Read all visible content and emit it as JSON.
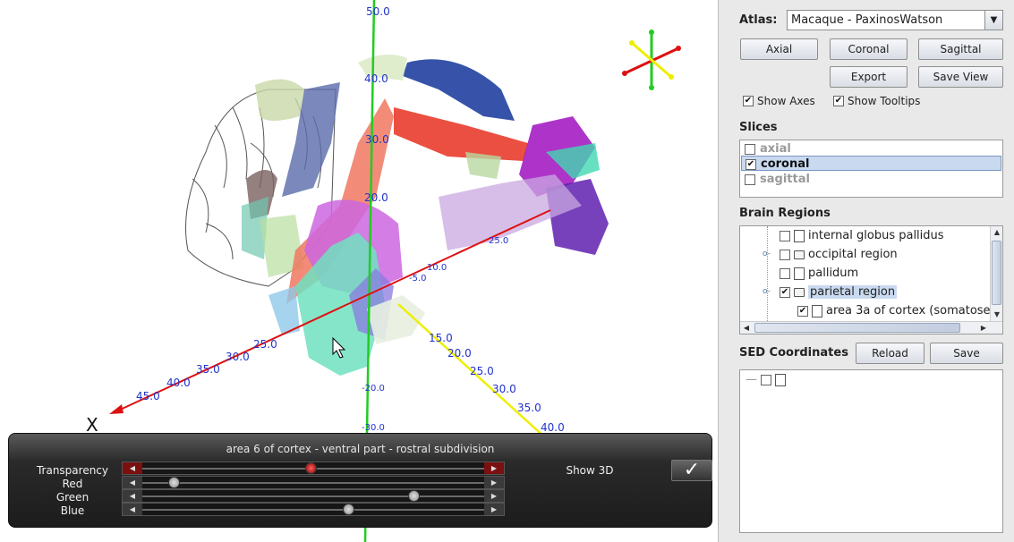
{
  "viewport": {
    "y_axis_ticks": [
      "50.0",
      "40.0",
      "30.0",
      "20.0",
      "-20.0",
      "-30.0"
    ],
    "x_axis_ticks": [
      "25.0",
      "30.0",
      "35.0",
      "40.0",
      "45.0"
    ],
    "z_axis_ticks": [
      "15.0",
      "20.0",
      "25.0",
      "30.0",
      "35.0",
      "40.0"
    ],
    "inner_ticks": [
      "25.0",
      "-5.0",
      "10.0"
    ],
    "x_axis_label": "X",
    "colors": {
      "y_axis": "#22cc22",
      "x_axis": "#dd1111",
      "z_axis": "#eeee00",
      "tick_text": "#2233cc"
    }
  },
  "panel": {
    "title": "area 6 of cortex - ventral part - rostral subdivision",
    "sliders": [
      {
        "label": "Transparency",
        "value": 0.49,
        "accent": "red"
      },
      {
        "label": "Red",
        "value": 0.09,
        "accent": "none"
      },
      {
        "label": "Green",
        "value": 0.79,
        "accent": "none"
      },
      {
        "label": "Blue",
        "value": 0.6,
        "accent": "none"
      }
    ],
    "show3d_label": "Show 3D",
    "show3d_checked": true,
    "arrow_left": "◀",
    "arrow_right": "▶",
    "check_glyph": "✓"
  },
  "sidebar": {
    "atlas_label": "Atlas:",
    "atlas_value": "Macaque - PaxinosWatson",
    "view_buttons": {
      "axial": "Axial",
      "coronal": "Coronal",
      "sagittal": "Sagittal",
      "export": "Export",
      "save_view": "Save View"
    },
    "show_axes": {
      "label": "Show Axes",
      "checked": true
    },
    "show_tooltips": {
      "label": "Show Tooltips",
      "checked": true
    },
    "slices_label": "Slices",
    "slices": [
      {
        "label": "axial",
        "checked": false,
        "selected": false
      },
      {
        "label": "coronal",
        "checked": true,
        "selected": true
      },
      {
        "label": "sagittal",
        "checked": false,
        "selected": false
      }
    ],
    "regions_label": "Brain Regions",
    "regions": [
      {
        "label": "internal globus pallidus",
        "checked": false,
        "kind": "file",
        "highlighted": false
      },
      {
        "label": "occipital region",
        "checked": false,
        "kind": "folder",
        "highlighted": false
      },
      {
        "label": "pallidum",
        "checked": false,
        "kind": "file",
        "highlighted": false
      },
      {
        "label": "parietal region",
        "checked": true,
        "kind": "folder",
        "highlighted": true
      },
      {
        "label": "area 3a of cortex (somatose",
        "checked": true,
        "kind": "file",
        "highlighted": false
      }
    ],
    "sed_label": "SED Coordinates",
    "reload_label": "Reload",
    "save_label": "Save",
    "check_glyph": "✔"
  }
}
